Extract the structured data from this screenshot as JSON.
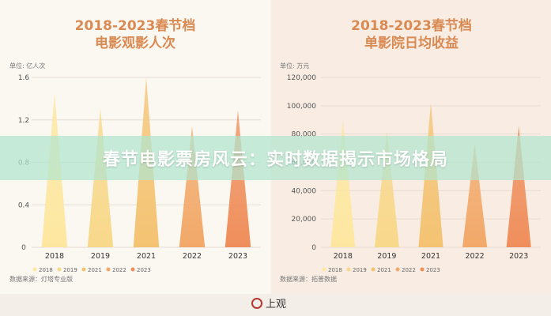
{
  "banner": {
    "text": "春节电影票房风云：实时数据揭示市场格局"
  },
  "logo": {
    "text": "上观"
  },
  "chart_data": [
    {
      "type": "bar",
      "title": [
        "2018-2023春节档",
        "电影观影人次"
      ],
      "unit": "单位: 亿人次",
      "source": "数据来源：灯塔专业版",
      "categories": [
        "2018",
        "2019",
        "2021",
        "2022",
        "2023"
      ],
      "values": [
        1.45,
        1.31,
        1.6,
        1.14,
        1.29
      ],
      "ylim": [
        0,
        1.6
      ],
      "yticks": [
        0,
        0.4,
        0.8,
        1.2,
        1.6
      ],
      "ytick_labels": [
        "0",
        "0.4",
        "0.8",
        "1.2",
        "1.6"
      ],
      "legend": [
        "2018",
        "2019",
        "2021",
        "2022",
        "2023"
      ],
      "legend_position": "bottom",
      "colors": [
        "#fde7a0",
        "#f8d88a",
        "#f4c372",
        "#f2a868",
        "#ef8e5b"
      ]
    },
    {
      "type": "bar",
      "title": [
        "2018-2023春节档",
        "单影院日均收益"
      ],
      "unit": "单位: 万元",
      "source": "数据来源：拓普数据",
      "categories": [
        "2018",
        "2019",
        "2021",
        "2022",
        "2023"
      ],
      "values": [
        90000,
        82000,
        102000,
        73000,
        86000
      ],
      "ylim": [
        0,
        120000
      ],
      "yticks": [
        0,
        20000,
        40000,
        60000,
        80000,
        100000,
        120000
      ],
      "ytick_labels": [
        "0",
        "20,000",
        "40,000",
        "60,000",
        "80,000",
        "100,000",
        "120,000"
      ],
      "legend": [
        "2018",
        "2019",
        "2021",
        "2022",
        "2023"
      ],
      "legend_position": "bottom",
      "colors": [
        "#fde7a0",
        "#f8d88a",
        "#f4c372",
        "#f2a868",
        "#ef8e5b"
      ]
    }
  ]
}
